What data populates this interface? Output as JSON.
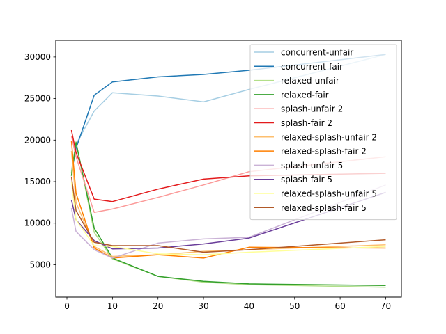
{
  "chart_data": {
    "type": "line",
    "title": "",
    "xlabel": "",
    "ylabel": "",
    "xlim": [
      -2.45,
      73.45
    ],
    "ylim": [
      1100,
      32000
    ],
    "xticks": [
      0,
      10,
      20,
      30,
      40,
      50,
      60,
      70
    ],
    "yticks": [
      5000,
      10000,
      15000,
      20000,
      25000,
      30000
    ],
    "grid": false,
    "legend_position": "top-right",
    "x": [
      1,
      2,
      6,
      10,
      20,
      30,
      40,
      70
    ],
    "series": [
      {
        "name": "concurrent-unfair",
        "color": "#a6cee3",
        "values": [
          16300,
          19500,
          23500,
          25700,
          25300,
          24600,
          26100,
          30300
        ]
      },
      {
        "name": "concurrent-fair",
        "color": "#1f78b4",
        "values": [
          16000,
          19000,
          25400,
          27000,
          27600,
          27900,
          28400,
          30300
        ]
      },
      {
        "name": "relaxed-unfair",
        "color": "#b2df8a",
        "values": [
          16100,
          19800,
          8900,
          5700,
          3600,
          2900,
          2600,
          2300
        ]
      },
      {
        "name": "relaxed-fair",
        "color": "#33a02c",
        "values": [
          15700,
          19700,
          9400,
          5800,
          3600,
          3000,
          2700,
          2500
        ]
      },
      {
        "name": "splash-unfair 2",
        "color": "#fb9a99",
        "values": [
          20500,
          18000,
          11300,
          11700,
          13100,
          14600,
          16200,
          18000
        ]
      },
      {
        "name": "splash-fair 2",
        "color": "#e31a1c",
        "values": [
          21200,
          18500,
          12900,
          12600,
          14100,
          15300,
          15700,
          16000
        ]
      },
      {
        "name": "relaxed-splash-unfair 2",
        "color": "#fdbf6f",
        "values": [
          18700,
          12500,
          7200,
          6000,
          6200,
          6600,
          6800,
          7400
        ]
      },
      {
        "name": "relaxed-splash-fair 2",
        "color": "#ff7f00",
        "values": [
          19900,
          13600,
          7000,
          5800,
          6200,
          5800,
          7100,
          7000
        ]
      },
      {
        "name": "splash-unfair 5",
        "color": "#cab2d6",
        "values": [
          11800,
          9000,
          6800,
          5800,
          7600,
          8100,
          8300,
          14600
        ]
      },
      {
        "name": "splash-fair 5",
        "color": "#6a3d9a",
        "values": [
          12800,
          10400,
          7900,
          6900,
          7000,
          7500,
          8200,
          13700
        ]
      },
      {
        "name": "relaxed-splash-unfair 5",
        "color": "#ffff99",
        "values": [
          15000,
          10400,
          7300,
          7200,
          6300,
          6200,
          6500,
          7200
        ]
      },
      {
        "name": "relaxed-splash-fair 5",
        "color": "#b15928",
        "values": [
          15600,
          11500,
          7700,
          7300,
          7300,
          6500,
          6800,
          8000
        ]
      }
    ]
  }
}
